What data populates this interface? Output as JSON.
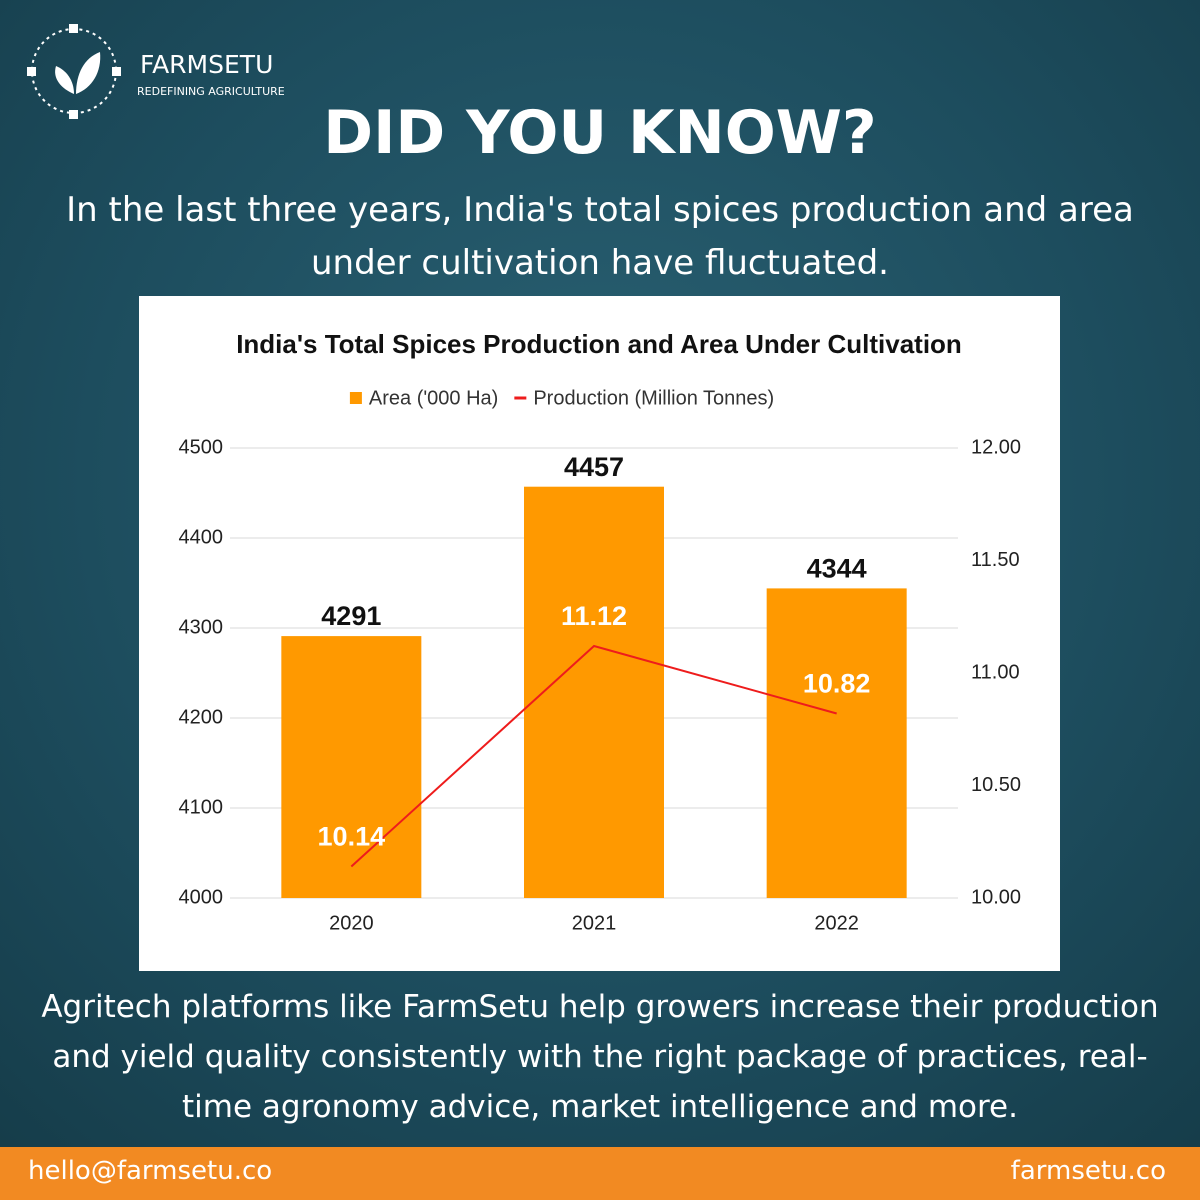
{
  "brand": {
    "name": "FARMSETU",
    "tagline": "REDEFINING AGRICULTURE"
  },
  "heading": "DID YOU KNOW?",
  "intro": "In the last three years, India's total spices production and area under cultivation have fluctuated.",
  "body": "Agritech platforms like FarmSetu help growers increase their production and yield quality consistently with the right package of practices, real-time agronomy advice, market intelligence and more.",
  "footer": {
    "email": "hello@farmsetu.co",
    "website": "farmsetu.co"
  },
  "chart_data": {
    "type": "bar",
    "title": "India's Total Spices Production and Area Under Cultivation",
    "categories": [
      "2020",
      "2021",
      "2022"
    ],
    "series": [
      {
        "name": "Area ('000 Ha)",
        "type": "bar",
        "color": "#ff9900",
        "values": [
          4291,
          4457,
          4344
        ]
      },
      {
        "name": "Production (Million Tonnes)",
        "type": "line",
        "axis": "y2",
        "color": "#ee1c1c",
        "values": [
          10.14,
          11.12,
          10.82
        ]
      }
    ],
    "ylim": [
      4000,
      4500
    ],
    "yticks": [
      4000,
      4100,
      4200,
      4300,
      4400,
      4500
    ],
    "y2lim": [
      10,
      12
    ],
    "y2ticks": [
      {
        "value": 10,
        "label": "10.00"
      },
      {
        "value": 10.5,
        "label": "10.50"
      },
      {
        "value": 11,
        "label": "11.00"
      },
      {
        "value": 11.5,
        "label": "11.50"
      },
      {
        "value": 12,
        "label": "12.00"
      }
    ],
    "grid": true,
    "legend": "top"
  }
}
